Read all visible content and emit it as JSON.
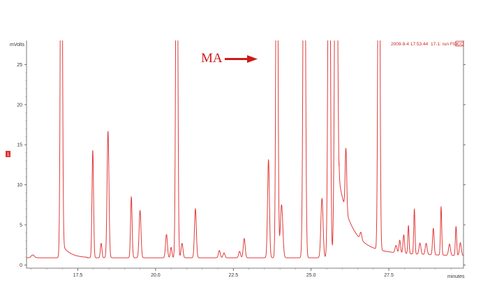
{
  "header": {
    "timestamp": "2009-9-4 17:53:44",
    "run_label": "17-1: run FID",
    "box_label": "CC",
    "color": "#cc2222"
  },
  "annotation": {
    "text": "MA",
    "color": "#cc1a1a"
  },
  "side_marker": {
    "text": "1",
    "color": "#dd3333"
  },
  "chart_data": {
    "type": "line",
    "xlabel": "minutes",
    "ylabel": "mVolts",
    "xlim": [
      15.85,
      29.9
    ],
    "ylim": [
      -0.4,
      28.0
    ],
    "xticks": [
      17.5,
      20.0,
      22.5,
      25.0,
      27.5
    ],
    "xtick_labels": [
      "17.5",
      "20.0",
      "22.5",
      "25.0",
      "27.5"
    ],
    "yticks": [
      0,
      5,
      10,
      15,
      20,
      25
    ],
    "ytick_labels": [
      "0",
      "5",
      "10",
      "15",
      "20",
      "25"
    ],
    "grid": false,
    "line_color": "#e03a3a",
    "baseline": 0.9,
    "peaks": [
      {
        "t": 16.05,
        "h": 0.35,
        "w": 0.05
      },
      {
        "t": 16.97,
        "h": 60.0,
        "w": 0.03
      },
      {
        "t": 17.98,
        "h": 13.4,
        "w": 0.025
      },
      {
        "t": 18.25,
        "h": 1.8,
        "w": 0.025
      },
      {
        "t": 18.47,
        "h": 15.8,
        "w": 0.03
      },
      {
        "t": 19.22,
        "h": 7.6,
        "w": 0.025
      },
      {
        "t": 19.5,
        "h": 5.9,
        "w": 0.03
      },
      {
        "t": 20.35,
        "h": 2.9,
        "w": 0.03
      },
      {
        "t": 20.5,
        "h": 1.3,
        "w": 0.025
      },
      {
        "t": 20.68,
        "h": 60.0,
        "w": 0.03
      },
      {
        "t": 20.85,
        "h": 1.8,
        "w": 0.03
      },
      {
        "t": 21.28,
        "h": 6.1,
        "w": 0.03
      },
      {
        "t": 22.05,
        "h": 0.9,
        "w": 0.03
      },
      {
        "t": 22.2,
        "h": 0.6,
        "w": 0.03
      },
      {
        "t": 22.7,
        "h": 0.8,
        "w": 0.03
      },
      {
        "t": 22.85,
        "h": 2.4,
        "w": 0.03
      },
      {
        "t": 23.63,
        "h": 12.2,
        "w": 0.03
      },
      {
        "t": 23.9,
        "h": 60.0,
        "w": 0.03
      },
      {
        "t": 24.05,
        "h": 6.6,
        "w": 0.04
      },
      {
        "t": 24.78,
        "h": 60.0,
        "w": 0.035
      },
      {
        "t": 25.35,
        "h": 7.4,
        "w": 0.035
      },
      {
        "t": 26.12,
        "h": 7.8,
        "w": 0.025
      },
      {
        "t": 26.6,
        "h": 0.9,
        "w": 0.03
      },
      {
        "t": 27.18,
        "h": 60.0,
        "w": 0.03
      },
      {
        "t": 27.73,
        "h": 0.9,
        "w": 0.03
      },
      {
        "t": 27.85,
        "h": 1.6,
        "w": 0.025
      },
      {
        "t": 27.98,
        "h": 2.3,
        "w": 0.025
      },
      {
        "t": 28.13,
        "h": 3.5,
        "w": 0.02
      },
      {
        "t": 28.32,
        "h": 5.6,
        "w": 0.02
      },
      {
        "t": 28.5,
        "h": 1.4,
        "w": 0.03
      },
      {
        "t": 28.7,
        "h": 1.4,
        "w": 0.03
      },
      {
        "t": 28.93,
        "h": 3.3,
        "w": 0.025
      },
      {
        "t": 29.18,
        "h": 6.0,
        "w": 0.02
      },
      {
        "t": 29.45,
        "h": 1.4,
        "w": 0.03
      },
      {
        "t": 29.66,
        "h": 3.6,
        "w": 0.02
      },
      {
        "t": 29.8,
        "h": 1.6,
        "w": 0.03
      }
    ],
    "tailing_peaks": [
      {
        "t": 25.58,
        "h": 60.0,
        "w": 0.035
      },
      {
        "t": 25.8,
        "h": 60.0,
        "w": 0.04,
        "tail_h": 11.0,
        "tail_tau": 0.4
      }
    ],
    "elevated_baseline": [
      {
        "start": 16.97,
        "end": 17.8,
        "h": 1.8,
        "tau": 0.25
      },
      {
        "start": 25.9,
        "end": 29.9,
        "h": 1.0,
        "tau": 3.0
      }
    ]
  }
}
